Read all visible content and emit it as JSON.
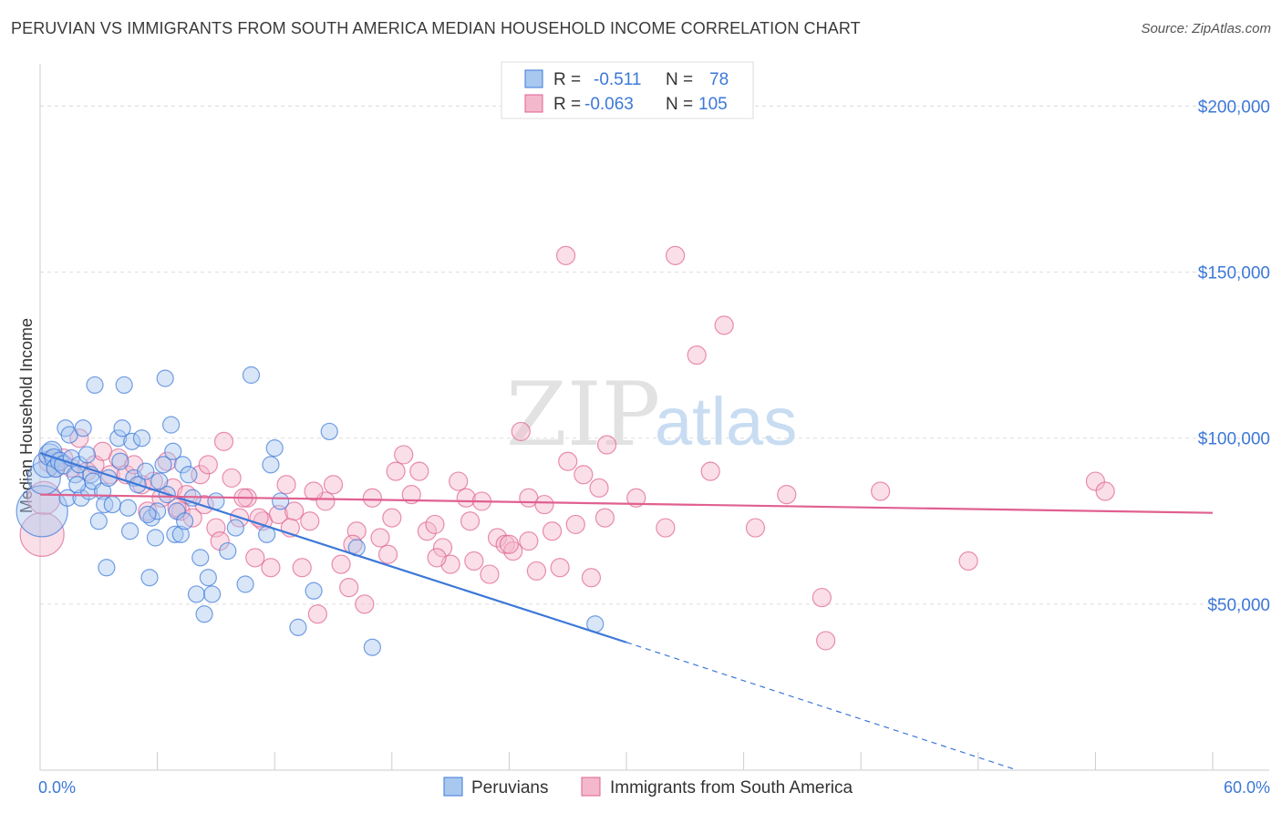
{
  "title": "PERUVIAN VS IMMIGRANTS FROM SOUTH AMERICA MEDIAN HOUSEHOLD INCOME CORRELATION CHART",
  "source": "Source: ZipAtlas.com",
  "watermark": {
    "zip": "ZIP",
    "atlas": "atlas"
  },
  "colors": {
    "blue": "#3c78d8",
    "blue_fill": "#a8c8f0",
    "pink": "#e06090",
    "pink_fill": "#f4b8cc",
    "grid": "#dddddd"
  },
  "legend": {
    "rows": [
      {
        "r_label": "R =",
        "r_value": "-0.511",
        "n_label": "N =",
        "n_value": "78"
      },
      {
        "r_label": "R =",
        "r_value": "-0.063",
        "n_label": "N =",
        "n_value": "105"
      }
    ]
  },
  "chart_data": {
    "type": "scatter",
    "title": "PERUVIAN VS IMMIGRANTS FROM SOUTH AMERICA MEDIAN HOUSEHOLD INCOME CORRELATION CHART",
    "xlabel": "",
    "ylabel": "Median Household Income",
    "xlim": [
      0,
      60
    ],
    "ylim": [
      0,
      210000
    ],
    "x_tick_labels": [
      "0.0%",
      "60.0%"
    ],
    "y_ticks": [
      50000,
      100000,
      150000,
      200000
    ],
    "y_tick_labels": [
      "$50,000",
      "$100,000",
      "$150,000",
      "$200,000"
    ],
    "grid": true,
    "legend_position": "bottom",
    "series": [
      {
        "name": "Peruvians",
        "color": "#3c78d8",
        "R": -0.511,
        "N": 78,
        "trend": {
          "x0": 0.0,
          "y0": 95500,
          "x1": 30.0,
          "y1": 38500,
          "dashed_to_x": 50.0,
          "dashed_to_y": 0
        },
        "points": [
          [
            0.1,
            78000,
            28
          ],
          [
            0.2,
            88000,
            18
          ],
          [
            0.3,
            92000,
            14
          ],
          [
            0.5,
            95000,
            12
          ],
          [
            0.6,
            96000,
            11
          ],
          [
            0.7,
            94000,
            10
          ],
          [
            0.8,
            91000,
            10
          ],
          [
            1.0,
            93000,
            10
          ],
          [
            1.2,
            92000,
            10
          ],
          [
            1.3,
            103000,
            9
          ],
          [
            1.4,
            82000,
            9
          ],
          [
            1.5,
            101000,
            9
          ],
          [
            1.6,
            94000,
            9
          ],
          [
            1.8,
            89000,
            9
          ],
          [
            2.0,
            92000,
            9
          ],
          [
            2.1,
            82000,
            9
          ],
          [
            2.2,
            103000,
            9
          ],
          [
            2.4,
            95000,
            9
          ],
          [
            2.5,
            84000,
            9
          ],
          [
            2.6,
            89000,
            9
          ],
          [
            2.7,
            87000,
            9
          ],
          [
            2.8,
            116000,
            9
          ],
          [
            3.0,
            75000,
            9
          ],
          [
            3.2,
            84000,
            9
          ],
          [
            3.3,
            80000,
            9
          ],
          [
            3.4,
            61000,
            9
          ],
          [
            3.5,
            88000,
            9
          ],
          [
            3.7,
            80000,
            9
          ],
          [
            4.0,
            100000,
            9
          ],
          [
            4.2,
            103000,
            9
          ],
          [
            4.3,
            116000,
            9
          ],
          [
            4.5,
            79000,
            9
          ],
          [
            4.6,
            72000,
            9
          ],
          [
            4.7,
            99000,
            9
          ],
          [
            4.8,
            88000,
            9
          ],
          [
            5.0,
            86000,
            9
          ],
          [
            5.2,
            100000,
            9
          ],
          [
            5.4,
            90000,
            9
          ],
          [
            5.6,
            58000,
            9
          ],
          [
            5.7,
            76000,
            9
          ],
          [
            5.9,
            70000,
            9
          ],
          [
            6.0,
            78000,
            9
          ],
          [
            6.1,
            87000,
            9
          ],
          [
            6.3,
            92000,
            9
          ],
          [
            6.4,
            118000,
            9
          ],
          [
            6.5,
            83000,
            9
          ],
          [
            6.7,
            104000,
            9
          ],
          [
            6.8,
            96000,
            9
          ],
          [
            6.9,
            71000,
            9
          ],
          [
            7.0,
            78000,
            9
          ],
          [
            7.2,
            71000,
            9
          ],
          [
            7.3,
            92000,
            9
          ],
          [
            7.4,
            75000,
            9
          ],
          [
            7.6,
            89000,
            9
          ],
          [
            7.8,
            82000,
            9
          ],
          [
            8.0,
            53000,
            9
          ],
          [
            8.2,
            64000,
            9
          ],
          [
            8.4,
            47000,
            9
          ],
          [
            8.6,
            58000,
            9
          ],
          [
            8.8,
            53000,
            9
          ],
          [
            9.0,
            81000,
            9
          ],
          [
            9.6,
            66000,
            9
          ],
          [
            10.0,
            73000,
            9
          ],
          [
            10.5,
            56000,
            9
          ],
          [
            10.8,
            119000,
            9
          ],
          [
            11.6,
            71000,
            9
          ],
          [
            11.8,
            92000,
            9
          ],
          [
            12.0,
            97000,
            9
          ],
          [
            12.3,
            81000,
            9
          ],
          [
            13.2,
            43000,
            9
          ],
          [
            14.0,
            54000,
            9
          ],
          [
            14.8,
            102000,
            9
          ],
          [
            16.2,
            67000,
            9
          ],
          [
            17.0,
            37000,
            9
          ],
          [
            28.4,
            44000,
            9
          ],
          [
            4.1,
            93000,
            9
          ],
          [
            1.9,
            86000,
            9
          ],
          [
            5.5,
            77000,
            9
          ]
        ]
      },
      {
        "name": "Immigrants from South America",
        "color": "#e06090",
        "R": -0.063,
        "N": 105,
        "trend": {
          "x0": 0.0,
          "y0": 83000,
          "x1": 60.0,
          "y1": 77500
        },
        "points": [
          [
            0.1,
            71000,
            24
          ],
          [
            0.2,
            82000,
            18
          ],
          [
            0.5,
            93000,
            12
          ],
          [
            0.8,
            91000,
            10
          ],
          [
            1.2,
            94000,
            10
          ],
          [
            1.6,
            91000,
            10
          ],
          [
            2.0,
            100000,
            10
          ],
          [
            2.4,
            90000,
            10
          ],
          [
            2.8,
            92000,
            10
          ],
          [
            3.2,
            96000,
            10
          ],
          [
            3.6,
            89000,
            10
          ],
          [
            4.0,
            94000,
            10
          ],
          [
            4.4,
            89000,
            10
          ],
          [
            4.8,
            92000,
            10
          ],
          [
            5.2,
            86000,
            10
          ],
          [
            5.5,
            78000,
            10
          ],
          [
            5.8,
            87000,
            10
          ],
          [
            6.2,
            82000,
            10
          ],
          [
            6.5,
            93000,
            10
          ],
          [
            6.8,
            85000,
            10
          ],
          [
            7.2,
            78000,
            10
          ],
          [
            7.5,
            83000,
            10
          ],
          [
            7.8,
            76000,
            10
          ],
          [
            8.2,
            89000,
            10
          ],
          [
            8.6,
            92000,
            10
          ],
          [
            9.0,
            73000,
            10
          ],
          [
            9.4,
            99000,
            10
          ],
          [
            9.8,
            88000,
            10
          ],
          [
            10.2,
            76000,
            10
          ],
          [
            10.6,
            82000,
            10
          ],
          [
            11.0,
            64000,
            10
          ],
          [
            11.4,
            75000,
            10
          ],
          [
            11.8,
            61000,
            10
          ],
          [
            12.2,
            77000,
            10
          ],
          [
            12.6,
            86000,
            10
          ],
          [
            13.0,
            78000,
            10
          ],
          [
            13.4,
            61000,
            10
          ],
          [
            13.8,
            75000,
            10
          ],
          [
            14.2,
            47000,
            10
          ],
          [
            14.6,
            81000,
            10
          ],
          [
            15.0,
            86000,
            10
          ],
          [
            15.4,
            62000,
            10
          ],
          [
            15.8,
            55000,
            10
          ],
          [
            16.2,
            72000,
            10
          ],
          [
            16.6,
            50000,
            10
          ],
          [
            17.0,
            82000,
            10
          ],
          [
            17.4,
            70000,
            10
          ],
          [
            17.8,
            65000,
            10
          ],
          [
            18.2,
            90000,
            10
          ],
          [
            18.6,
            95000,
            10
          ],
          [
            19.0,
            83000,
            10
          ],
          [
            19.4,
            90000,
            10
          ],
          [
            19.8,
            72000,
            10
          ],
          [
            20.2,
            74000,
            10
          ],
          [
            20.6,
            67000,
            10
          ],
          [
            21.0,
            62000,
            10
          ],
          [
            21.4,
            87000,
            10
          ],
          [
            21.8,
            82000,
            10
          ],
          [
            22.2,
            63000,
            10
          ],
          [
            22.6,
            81000,
            10
          ],
          [
            23.0,
            59000,
            10
          ],
          [
            23.4,
            70000,
            10
          ],
          [
            23.8,
            68000,
            10
          ],
          [
            24.2,
            66000,
            10
          ],
          [
            24.6,
            102000,
            10
          ],
          [
            25.0,
            82000,
            10
          ],
          [
            25.4,
            60000,
            10
          ],
          [
            25.8,
            80000,
            10
          ],
          [
            26.2,
            72000,
            10
          ],
          [
            26.6,
            61000,
            10
          ],
          [
            27.0,
            93000,
            10
          ],
          [
            27.4,
            74000,
            10
          ],
          [
            27.8,
            89000,
            10
          ],
          [
            28.2,
            58000,
            10
          ],
          [
            28.6,
            85000,
            10
          ],
          [
            29.0,
            98000,
            10
          ],
          [
            25.0,
            69000,
            10
          ],
          [
            20.3,
            64000,
            10
          ],
          [
            26.9,
            155000,
            10
          ],
          [
            32.5,
            155000,
            10
          ],
          [
            35.0,
            134000,
            10
          ],
          [
            33.6,
            125000,
            10
          ],
          [
            34.3,
            90000,
            10
          ],
          [
            32.0,
            73000,
            10
          ],
          [
            36.6,
            73000,
            10
          ],
          [
            38.2,
            83000,
            10
          ],
          [
            40.0,
            52000,
            10
          ],
          [
            40.2,
            39000,
            10
          ],
          [
            43.0,
            84000,
            10
          ],
          [
            47.5,
            63000,
            10
          ],
          [
            54.0,
            87000,
            10
          ],
          [
            54.5,
            84000,
            10
          ],
          [
            24.0,
            68000,
            10
          ],
          [
            22.0,
            75000,
            10
          ],
          [
            18.0,
            76000,
            10
          ],
          [
            16.0,
            68000,
            10
          ],
          [
            12.8,
            73000,
            10
          ],
          [
            11.2,
            76000,
            10
          ],
          [
            10.4,
            82000,
            10
          ],
          [
            9.2,
            69000,
            10
          ],
          [
            8.4,
            80000,
            10
          ],
          [
            7.0,
            79000,
            10
          ],
          [
            14.0,
            84000,
            10
          ],
          [
            30.5,
            82000,
            10
          ],
          [
            28.9,
            76000,
            10
          ]
        ]
      }
    ]
  }
}
